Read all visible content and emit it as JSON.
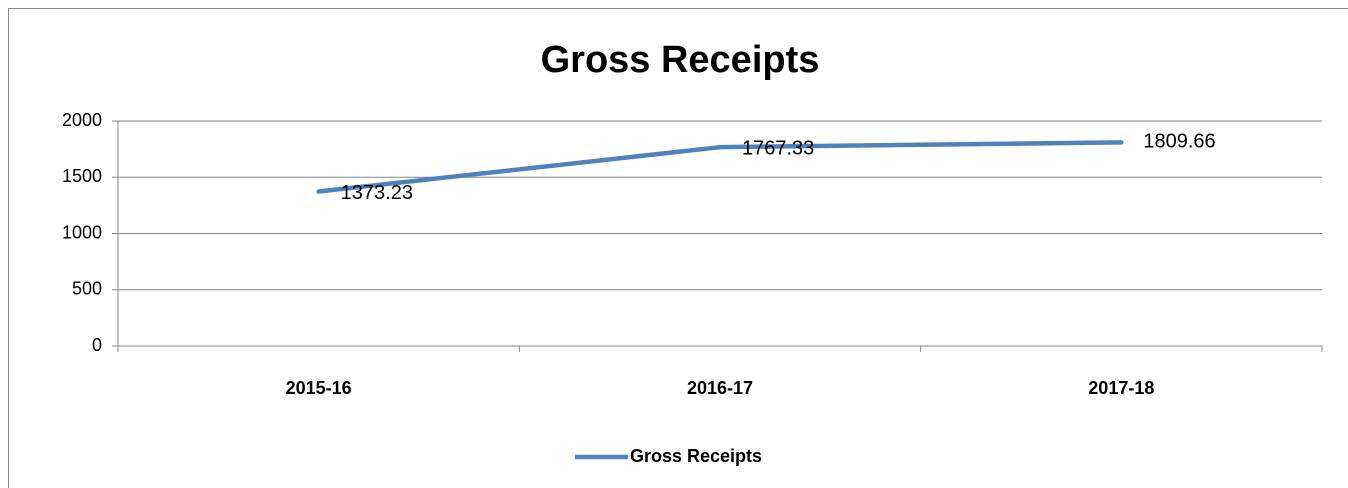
{
  "chart_data": {
    "type": "line",
    "title": "Gross Receipts",
    "categories": [
      "2015-16",
      "2016-17",
      "2017-18"
    ],
    "series": [
      {
        "name": "Gross Receipts",
        "color": "#4f81bd",
        "values": [
          1373.23,
          1767.33,
          1809.66
        ]
      }
    ],
    "ylim": [
      0,
      2000
    ],
    "yticks": [
      0,
      500,
      1000,
      1500,
      2000
    ],
    "grid": true,
    "legend": "bottom"
  }
}
